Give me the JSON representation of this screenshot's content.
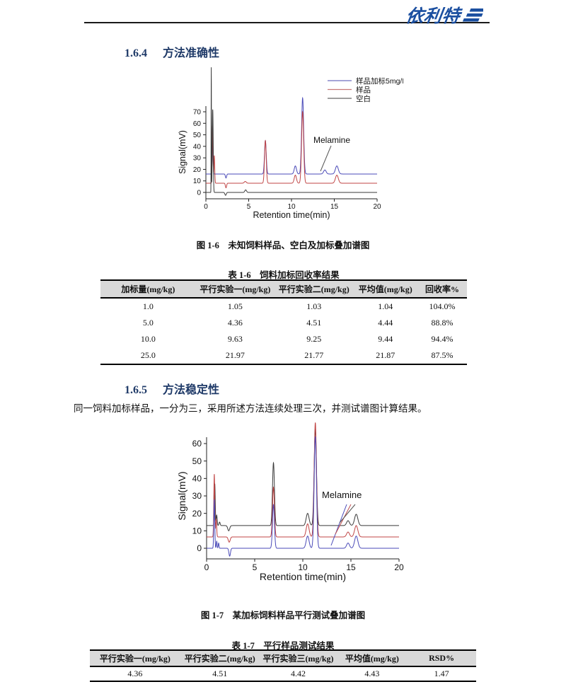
{
  "header": {
    "logo_text": "依利特",
    "logo_color": "#1b4fa0"
  },
  "sections": [
    {
      "number": "1.6.4",
      "title": "方法准确性"
    },
    {
      "number": "1.6.5",
      "title": "方法稳定性"
    }
  ],
  "paragraph_stability": "同一饲料加标样品，一分为三，采用所述方法连续处理三次，并测试谱图计算结果。",
  "figures": [
    {
      "caption": "图 1-6　未知饲料样品、空白及加标叠加谱图"
    },
    {
      "caption": "图 1-7　某加标饲料样品平行测试叠加谱图"
    }
  ],
  "tables": [
    {
      "title": "表 1-6　饲料加标回收率结果",
      "headers": [
        "加标量(mg/kg)",
        "平行实验一(mg/kg)",
        "平行实验二(mg/kg)",
        "平均值(mg/kg)",
        "回收率%"
      ],
      "rows": [
        [
          "1.0",
          "1.05",
          "1.03",
          "1.04",
          "104.0%"
        ],
        [
          "5.0",
          "4.36",
          "4.51",
          "4.44",
          "88.8%"
        ],
        [
          "10.0",
          "9.63",
          "9.25",
          "9.44",
          "94.4%"
        ],
        [
          "25.0",
          "21.97",
          "21.77",
          "21.87",
          "87.5%"
        ]
      ]
    },
    {
      "title": "表 1-7　平行样品测试结果",
      "headers": [
        "平行实验一(mg/kg)",
        "平行实验二(mg/kg)",
        "平行实验三(mg/kg)",
        "平均值(mg/kg)",
        "RSD%"
      ],
      "rows": [
        [
          "4.36",
          "4.51",
          "4.42",
          "4.43",
          "1.47"
        ]
      ]
    }
  ],
  "chart_data": [
    {
      "type": "line",
      "title": "未知饲料样品、空白及加标叠加谱图 (chromatogram)",
      "xlabel": "Retention time(min)",
      "ylabel": "Signal(mV)",
      "xlim": [
        0,
        20
      ],
      "x_ticks": [
        0,
        5,
        10,
        15,
        20
      ],
      "y_ticks": [
        0,
        10,
        20,
        30,
        40,
        50,
        60,
        70
      ],
      "grid": false,
      "legend": {
        "position": "top-right",
        "items": [
          {
            "label": "样品加标5mg/L",
            "color": "#6f6fc0"
          },
          {
            "label": "样品",
            "color": "#c87a7a"
          },
          {
            "label": "空白",
            "color": "#666666"
          }
        ]
      },
      "annotation": "Melamine",
      "series": [
        {
          "key": "spiked-sample",
          "name": "样品加标5mg/L",
          "color": "#4a4ab8",
          "baseline_mV": 16,
          "peaks": [
            {
              "t_min": 0.78,
              "height_mV": 29,
              "sigma_min": 0.05
            },
            {
              "t_min": 2.35,
              "height_mV": -3.5,
              "sigma_min": 0.07
            },
            {
              "t_min": 6.95,
              "height_mV": 29,
              "sigma_min": 0.1
            },
            {
              "t_min": 10.45,
              "height_mV": 7,
              "sigma_min": 0.13
            },
            {
              "t_min": 11.3,
              "height_mV": 66,
              "sigma_min": 0.12
            },
            {
              "t_min": 13.9,
              "height_mV": 3.5,
              "sigma_min": 0.15
            },
            {
              "t_min": 15.3,
              "height_mV": 7,
              "sigma_min": 0.17
            }
          ]
        },
        {
          "key": "sample",
          "name": "样品",
          "color": "#c04545",
          "baseline_mV": 8,
          "peaks": [
            {
              "t_min": 0.78,
              "height_mV": 50,
              "sigma_min": 0.05
            },
            {
              "t_min": 0.98,
              "height_mV": 24,
              "sigma_min": 0.05
            },
            {
              "t_min": 2.35,
              "height_mV": -4,
              "sigma_min": 0.07
            },
            {
              "t_min": 4.6,
              "height_mV": 1.5,
              "sigma_min": 0.12
            },
            {
              "t_min": 6.95,
              "height_mV": 37,
              "sigma_min": 0.1
            },
            {
              "t_min": 10.45,
              "height_mV": 7,
              "sigma_min": 0.13
            },
            {
              "t_min": 11.3,
              "height_mV": 62,
              "sigma_min": 0.12
            },
            {
              "t_min": 15.3,
              "height_mV": 7,
              "sigma_min": 0.17
            }
          ]
        },
        {
          "key": "blank",
          "name": "空白",
          "color": "#3a3a3a",
          "baseline_mV": 0,
          "peaks": [
            {
              "t_min": 0.63,
              "height_mV": 108,
              "sigma_min": 0.018
            },
            {
              "t_min": 0.8,
              "height_mV": 72,
              "sigma_min": 0.055
            },
            {
              "t_min": 2.3,
              "height_mV": -2.5,
              "sigma_min": 0.08
            },
            {
              "t_min": 4.65,
              "height_mV": 2.2,
              "sigma_min": 0.1
            }
          ]
        }
      ]
    },
    {
      "type": "line",
      "title": "某加标饲料样品平行测试叠加谱图 (chromatogram)",
      "xlabel": "Retention time(min)",
      "ylabel": "Signal(mV)",
      "xlim": [
        0,
        20
      ],
      "x_ticks": [
        0,
        5,
        10,
        15,
        20
      ],
      "y_ticks": [
        0,
        10,
        20,
        30,
        40,
        50,
        60
      ],
      "grid": false,
      "annotation": "Melamine",
      "series": [
        {
          "key": "run-black",
          "name": "black",
          "color": "#3a3a3a",
          "baseline_mV": 13,
          "peaks": [
            {
              "t_min": 0.85,
              "height_mV": 24,
              "sigma_min": 0.05
            },
            {
              "t_min": 1.05,
              "height_mV": 6,
              "sigma_min": 0.05
            },
            {
              "t_min": 1.35,
              "height_mV": 2,
              "sigma_min": 0.06
            },
            {
              "t_min": 2.3,
              "height_mV": -3,
              "sigma_min": 0.1
            },
            {
              "t_min": 6.95,
              "height_mV": 36,
              "sigma_min": 0.1
            },
            {
              "t_min": 10.5,
              "height_mV": 7,
              "sigma_min": 0.15
            },
            {
              "t_min": 11.3,
              "height_mV": 55,
              "sigma_min": 0.12
            },
            {
              "t_min": 14.7,
              "height_mV": 2.8,
              "sigma_min": 0.15
            },
            {
              "t_min": 15.55,
              "height_mV": 6.5,
              "sigma_min": 0.17
            }
          ]
        },
        {
          "key": "run-red",
          "name": "red",
          "color": "#c04545",
          "baseline_mV": 6.5,
          "peaks": [
            {
              "t_min": 0.8,
              "height_mV": 36,
              "sigma_min": 0.05
            },
            {
              "t_min": 1.0,
              "height_mV": 10,
              "sigma_min": 0.05
            },
            {
              "t_min": 2.35,
              "height_mV": -3,
              "sigma_min": 0.1
            },
            {
              "t_min": 6.95,
              "height_mV": 28.5,
              "sigma_min": 0.1
            },
            {
              "t_min": 10.5,
              "height_mV": 7.5,
              "sigma_min": 0.15
            },
            {
              "t_min": 11.3,
              "height_mV": 65.5,
              "sigma_min": 0.12
            },
            {
              "t_min": 14.7,
              "height_mV": 2.8,
              "sigma_min": 0.15
            },
            {
              "t_min": 15.55,
              "height_mV": 6.5,
              "sigma_min": 0.17
            }
          ]
        },
        {
          "key": "run-blue",
          "name": "blue",
          "color": "#4a4ab8",
          "baseline_mV": 0,
          "peaks": [
            {
              "t_min": 0.8,
              "height_mV": 28,
              "sigma_min": 0.05
            },
            {
              "t_min": 1.05,
              "height_mV": 4,
              "sigma_min": 0.04
            },
            {
              "t_min": 1.25,
              "height_mV": 3,
              "sigma_min": 0.04
            },
            {
              "t_min": 2.4,
              "height_mV": -4.5,
              "sigma_min": 0.08
            },
            {
              "t_min": 6.95,
              "height_mV": 25,
              "sigma_min": 0.1
            },
            {
              "t_min": 10.5,
              "height_mV": 7,
              "sigma_min": 0.15
            },
            {
              "t_min": 11.3,
              "height_mV": 64,
              "sigma_min": 0.12
            },
            {
              "t_min": 14.7,
              "height_mV": 3,
              "sigma_min": 0.15
            },
            {
              "t_min": 15.55,
              "height_mV": 7,
              "sigma_min": 0.17
            }
          ]
        }
      ]
    }
  ]
}
